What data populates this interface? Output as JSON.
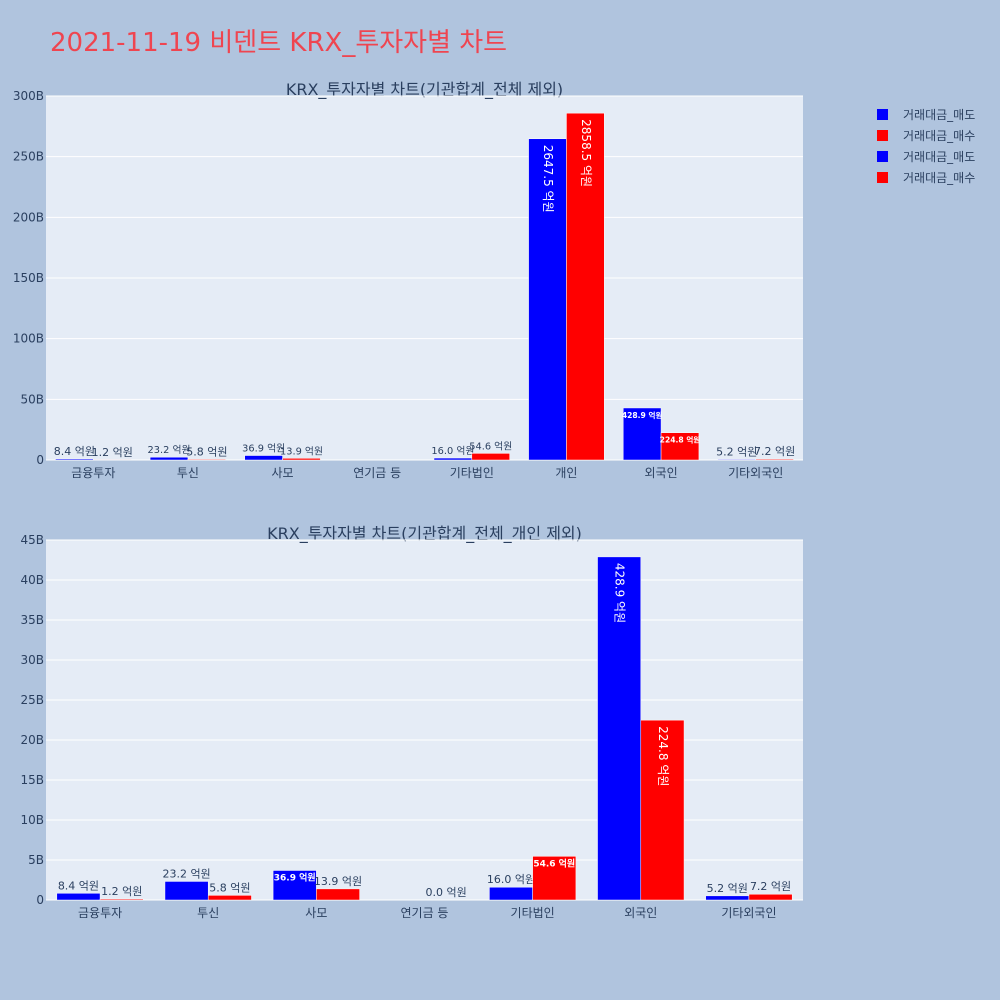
{
  "page": {
    "title": "2021-11-19 비덴트 KRX_투자자별 차트",
    "title_color": "#ef4550",
    "background": "#b0c4de",
    "plot_background": "#e5ecf6"
  },
  "legend": {
    "placement": "top-right",
    "items": [
      {
        "label": "거래대금_매도",
        "color": "#0000ff"
      },
      {
        "label": "거래대금_매수",
        "color": "#ff0000"
      },
      {
        "label": "거래대금_매도",
        "color": "#0000ff"
      },
      {
        "label": "거래대금_매수",
        "color": "#ff0000"
      }
    ]
  },
  "chart_data": [
    {
      "type": "bar",
      "title": "KRX_투자자별 차트(기관합계_전체 제외)",
      "categories": [
        "금융투자",
        "투신",
        "사모",
        "연기금 등",
        "기타법인",
        "개인",
        "외국인",
        "기타외국인"
      ],
      "ylim": [
        0,
        300
      ],
      "yticks": [
        "0",
        "50B",
        "100B",
        "150B",
        "200B",
        "250B",
        "300B"
      ],
      "grid": true,
      "series": [
        {
          "name": "거래대금_매도",
          "color": "#0000ff",
          "values": [
            0.84,
            2.32,
            3.69,
            0,
            1.6,
            264.75,
            42.89,
            0.52
          ],
          "labels": [
            "8.4 억원",
            "23.2 억원",
            "36.9 억원",
            "",
            "16.0 억원",
            "2647.5 억원",
            "428.9 억원",
            "5.2 억원"
          ]
        },
        {
          "name": "거래대금_매수",
          "color": "#ff0000",
          "values": [
            0.12,
            0.58,
            1.39,
            0,
            5.46,
            285.85,
            22.48,
            0.72
          ],
          "labels": [
            "1.2 억원",
            "5.8 억원",
            "13.9 억원",
            "",
            "54.6 억원",
            "2858.5 억원",
            "224.8 억원",
            "7.2 억원"
          ]
        }
      ]
    },
    {
      "type": "bar",
      "title": "KRX_투자자별 차트(기관합계_전체_개인 제외)",
      "categories": [
        "금융투자",
        "투신",
        "사모",
        "연기금 등",
        "기타법인",
        "외국인",
        "기타외국인"
      ],
      "ylim": [
        0,
        45
      ],
      "yticks": [
        "0",
        "5B",
        "10B",
        "15B",
        "20B",
        "25B",
        "30B",
        "35B",
        "40B",
        "45B"
      ],
      "grid": true,
      "series": [
        {
          "name": "거래대금_매도",
          "color": "#0000ff",
          "values": [
            0.84,
            2.32,
            3.69,
            0,
            1.6,
            42.89,
            0.52
          ],
          "labels": [
            "8.4 억원",
            "23.2 억원",
            "36.9 억원",
            "",
            "16.0 억원",
            "428.9 억원",
            "5.2 억원"
          ]
        },
        {
          "name": "거래대금_매수",
          "color": "#ff0000",
          "values": [
            0.12,
            0.58,
            1.39,
            0,
            5.46,
            22.48,
            0.72
          ],
          "labels": [
            "1.2 억원",
            "5.8 억원",
            "13.9 억원",
            "0.0 억원",
            "54.6 억원",
            "224.8 억원",
            "7.2 억원"
          ]
        }
      ]
    }
  ]
}
